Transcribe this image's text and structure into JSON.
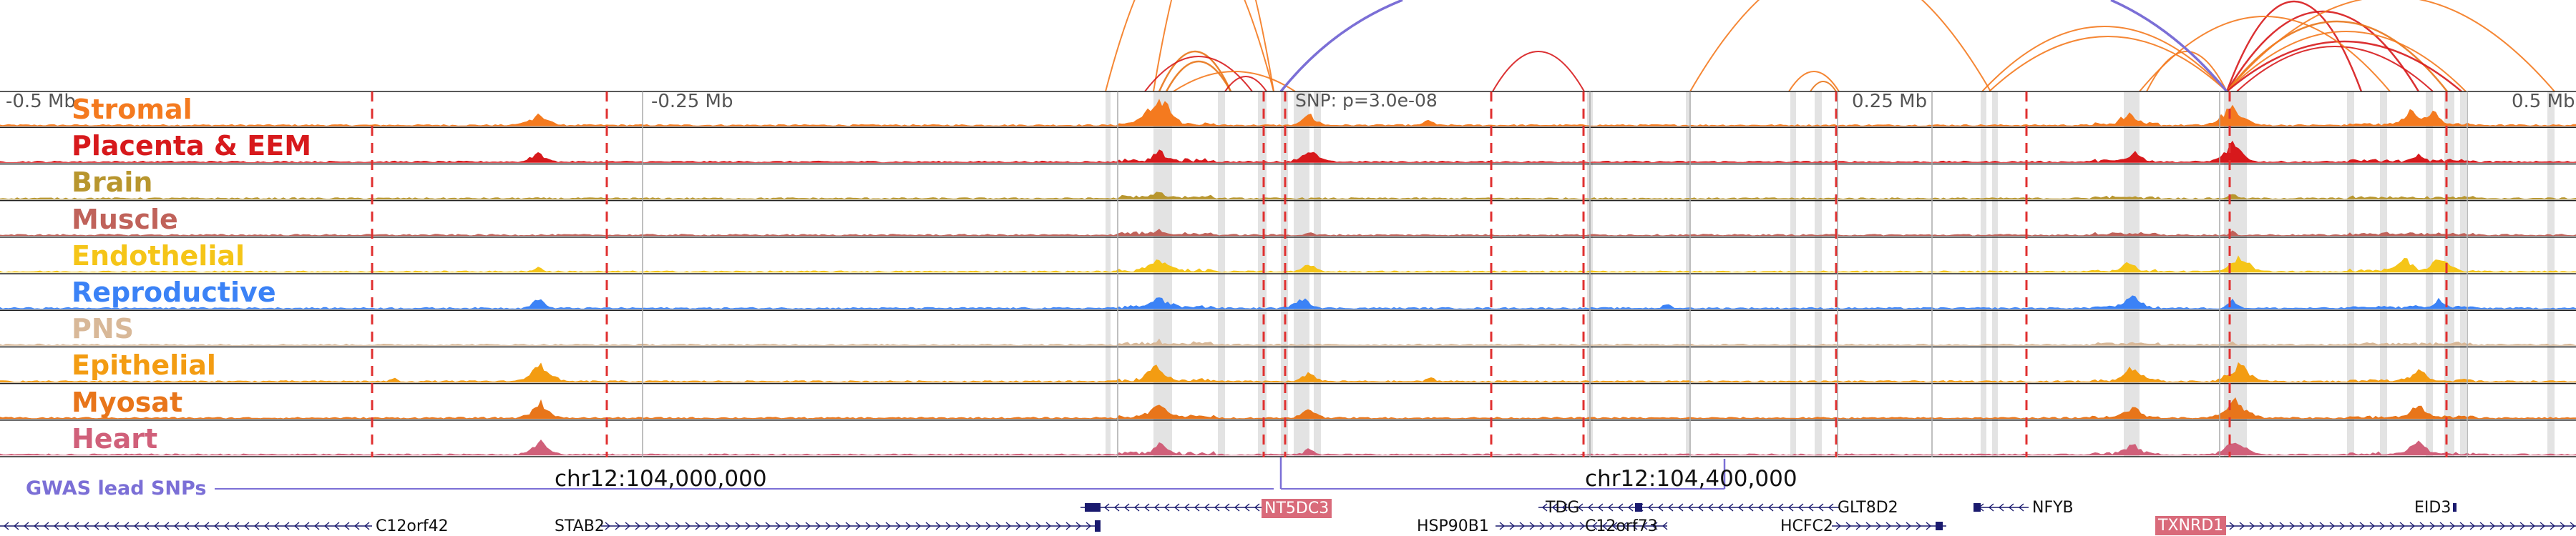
{
  "scale": {
    "left_label": "-0.5 Mb",
    "center_left_label": "-0.25 Mb",
    "center_right_label": "0.25 Mb",
    "right_label": "0.5 Mb",
    "snp_label": "SNP: p=3.0e-08"
  },
  "coordinates": {
    "left": "chr12:104,000,000",
    "right": "chr12:104,400,000"
  },
  "gwas_label": "GWAS lead SNPs",
  "tracks": [
    {
      "name": "Stromal",
      "color": "#f47a1f"
    },
    {
      "name": "Placenta & EEM",
      "color": "#d7191c"
    },
    {
      "name": "Brain",
      "color": "#b8962e"
    },
    {
      "name": "Muscle",
      "color": "#c0625a"
    },
    {
      "name": "Endothelial",
      "color": "#f5c518"
    },
    {
      "name": "Reproductive",
      "color": "#3b82f6"
    },
    {
      "name": "PNS",
      "color": "#d8b898"
    },
    {
      "name": "Epithelial",
      "color": "#f39c12"
    },
    {
      "name": "Myosat",
      "color": "#e8751a"
    },
    {
      "name": "Heart",
      "color": "#d0607a"
    }
  ],
  "genes": [
    {
      "name": "C12orf42",
      "highlight": false
    },
    {
      "name": "STAB2",
      "highlight": false
    },
    {
      "name": "NT5DC3",
      "highlight": true
    },
    {
      "name": "TDG",
      "highlight": false
    },
    {
      "name": "HSP90B1",
      "highlight": false
    },
    {
      "name": "C12orf73",
      "highlight": false
    },
    {
      "name": "GLT8D2",
      "highlight": false
    },
    {
      "name": "HCFC2",
      "highlight": false
    },
    {
      "name": "NFYB",
      "highlight": false
    },
    {
      "name": "TXNRD1",
      "highlight": true
    },
    {
      "name": "EID3",
      "highlight": false
    }
  ],
  "colors": {
    "gene_model": "#1a1a6e",
    "gene_highlight_bg": "#d96a7a",
    "gwas": "#7b6fd6",
    "boundary_dashed": "#e03030",
    "highlight_band": "#d9d9d9"
  }
}
